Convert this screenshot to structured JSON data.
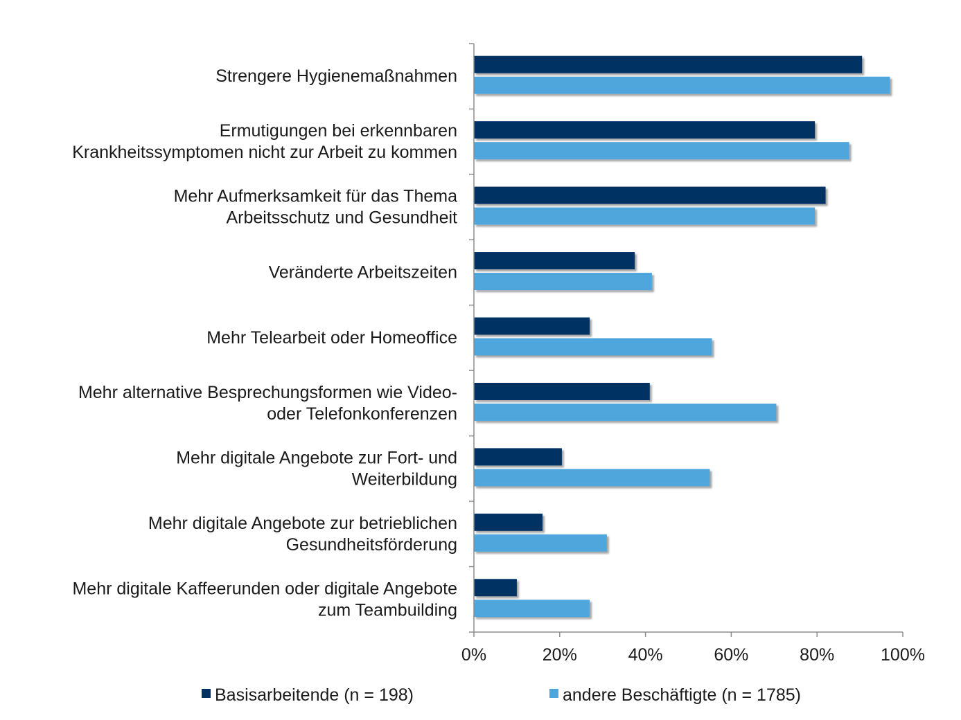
{
  "chart_data": {
    "type": "bar",
    "orientation": "horizontal",
    "categories": [
      [
        "Strengere Hygienemaßnahmen"
      ],
      [
        "Ermutigungen bei erkennbaren",
        "Krankheitssymptomen nicht zur Arbeit zu kommen"
      ],
      [
        "Mehr Aufmerksamkeit für das Thema",
        "Arbeitsschutz und Gesundheit"
      ],
      [
        "Veränderte Arbeitszeiten"
      ],
      [
        "Mehr Telearbeit oder Homeoffice"
      ],
      [
        "Mehr alternative Besprechungsformen wie Video-",
        "oder Telefonkonferenzen"
      ],
      [
        "Mehr digitale Angebote zur Fort- und",
        "Weiterbildung"
      ],
      [
        "Mehr digitale Angebote zur betrieblichen",
        "Gesundheitsförderung"
      ],
      [
        "Mehr digitale Kaffeerunden oder digitale Angebote",
        "zum Teambuilding"
      ]
    ],
    "series": [
      {
        "name": "Basisarbeitende (n = 198)",
        "color": "#003063",
        "values": [
          90.5,
          79.5,
          82,
          37.5,
          27,
          41,
          20.5,
          16,
          10
        ]
      },
      {
        "name": "andere Beschäftigte (n = 1785)",
        "color": "#4fa6dc",
        "values": [
          97,
          87.5,
          79.5,
          41.5,
          55.5,
          70.5,
          55,
          31,
          27
        ]
      }
    ],
    "xlim": [
      0,
      100
    ],
    "xticks": [
      "0%",
      "20%",
      "40%",
      "60%",
      "80%",
      "100%"
    ],
    "grid": false,
    "legend_position": "bottom"
  }
}
